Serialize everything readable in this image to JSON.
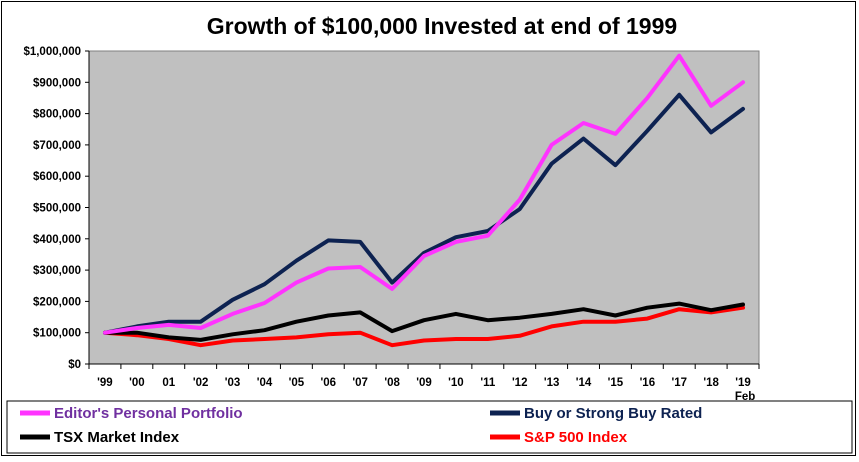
{
  "chart_data": {
    "type": "line",
    "title": "Growth of $100,000  Invested at end of 1999",
    "xlabel": "",
    "ylabel": "",
    "ylim": [
      0,
      1000000
    ],
    "yticks": [
      "$0",
      "$100,000",
      "$200,000",
      "$300,000",
      "$400,000",
      "$500,000",
      "$600,000",
      "$700,000",
      "$800,000",
      "$900,000",
      "$1,000,000"
    ],
    "categories": [
      "'99",
      "'00",
      "01",
      "'02",
      "'03",
      "'04",
      "'05",
      "'06",
      "'07",
      "'08",
      "'09",
      "'10",
      "'11",
      "'12",
      "'13",
      "'14",
      "'15",
      "'16",
      "'17",
      "'18",
      "'19"
    ],
    "x_annotation": "Feb",
    "grid": false,
    "plot_background": "#c0c0c0",
    "legend_position": "bottom",
    "series": [
      {
        "name": "Editor's Personal Portfolio",
        "color": "#ff33ff",
        "legend_text_color": "#7030a0",
        "values": [
          100000,
          115000,
          125000,
          115000,
          160000,
          195000,
          260000,
          305000,
          310000,
          240000,
          345000,
          390000,
          410000,
          525000,
          700000,
          770000,
          735000,
          850000,
          985000,
          825000,
          900000
        ]
      },
      {
        "name": "Buy or Strong Buy Rated",
        "color": "#0d2251",
        "legend_text_color": "#0d2251",
        "values": [
          100000,
          120000,
          135000,
          135000,
          205000,
          255000,
          330000,
          395000,
          390000,
          260000,
          355000,
          405000,
          425000,
          495000,
          640000,
          720000,
          635000,
          745000,
          860000,
          740000,
          815000
        ]
      },
      {
        "name": "TSX Market Index",
        "color": "#000000",
        "legend_text_color": "#000000",
        "values": [
          100000,
          100000,
          85000,
          77000,
          95000,
          108000,
          135000,
          155000,
          165000,
          105000,
          140000,
          160000,
          140000,
          148000,
          160000,
          175000,
          155000,
          180000,
          193000,
          172000,
          190000
        ]
      },
      {
        "name": "S&P 500 Index",
        "color": "#ff0000",
        "legend_text_color": "#ff0000",
        "values": [
          100000,
          92000,
          80000,
          60000,
          75000,
          80000,
          85000,
          95000,
          100000,
          60000,
          75000,
          80000,
          80000,
          90000,
          120000,
          135000,
          135000,
          145000,
          175000,
          165000,
          180000
        ]
      }
    ]
  }
}
